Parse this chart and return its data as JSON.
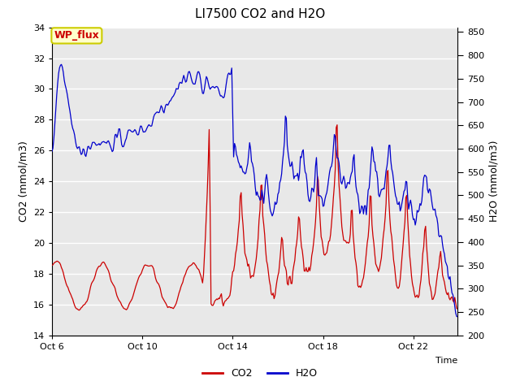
{
  "title": "LI7500 CO2 and H2O",
  "xlabel": "Time",
  "ylabel_left": "CO2 (mmol/m3)",
  "ylabel_right": "H2O (mmol/m3)",
  "ylim_left": [
    14,
    34
  ],
  "ylim_right": [
    200,
    860
  ],
  "yticks_left": [
    14,
    16,
    18,
    20,
    22,
    24,
    26,
    28,
    30,
    32,
    34
  ],
  "yticks_right": [
    200,
    250,
    300,
    350,
    400,
    450,
    500,
    550,
    600,
    650,
    700,
    750,
    800,
    850
  ],
  "x_tick_labels": [
    "Oct 6",
    "Oct 10",
    "Oct 14",
    "Oct 18",
    "Oct 22"
  ],
  "x_tick_positions": [
    0,
    96,
    192,
    288,
    384
  ],
  "annotation_text": "WP_flux",
  "annotation_bg": "#ffffcc",
  "annotation_border": "#cccc00",
  "annotation_text_color": "#cc0000",
  "co2_color": "#cc0000",
  "h2o_color": "#0000cc",
  "plot_bg_color": "#e8e8e8",
  "outer_bg_color": "#ffffff",
  "grid_color": "#ffffff",
  "legend_co2": "CO2",
  "legend_h2o": "H2O",
  "n_points": 432
}
